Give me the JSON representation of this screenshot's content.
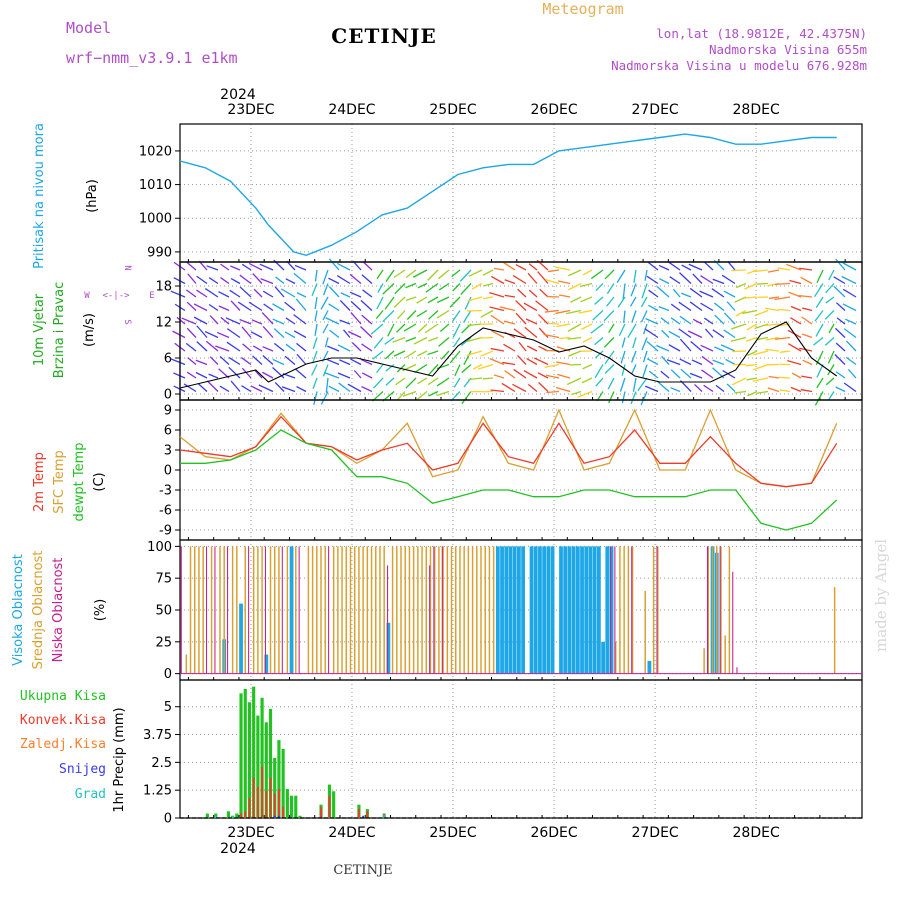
{
  "header": {
    "model_label": "Model",
    "model_name": "wrf−nmm_v3.9.1  e1km",
    "station": "CETINJE",
    "meteogram": "Meteogram",
    "lonlat": "lon,lat (18.9812E, 42.4375N)",
    "altitude": "Nadmorska Visina 655m",
    "model_altitude": "Nadmorska Visina u modelu 676.928m",
    "footer_station": "CETINJE",
    "watermark": "made by Angel"
  },
  "colors": {
    "pressure": "#1ea7e6",
    "temp": "#ee3a2a",
    "sfc": "#d9a030",
    "dewpt": "#22c222",
    "high": "#1ea7e6",
    "mid": "#d9a030",
    "low": "#c2208e",
    "total": "#22c222",
    "conv": "#ee3a2a",
    "frozen": "#ff7f2a",
    "snow": "#3a3aee",
    "grad": "#22c2c2",
    "wind_label": "#22aa22",
    "purple": "#b04ec8"
  },
  "chart_data": [
    {
      "type": "line",
      "panel": "pressure",
      "ylabel_line1": "Pritisak na nivou mora",
      "ylabel_units": "(hPa)",
      "ylim": [
        987,
        1028
      ],
      "yticks": [
        990,
        1000,
        1010,
        1020
      ],
      "x_top_labels": [
        "23DEC",
        "24DEC",
        "25DEC",
        "26DEC",
        "27DEC",
        "28DEC"
      ],
      "x_top_year": "2024",
      "x_hours": [
        0,
        6,
        12,
        18,
        21,
        24,
        27,
        30,
        36,
        42,
        48,
        54,
        60,
        66,
        72,
        78,
        84,
        90,
        96,
        102,
        108,
        114,
        120,
        126,
        132,
        138,
        144,
        150,
        156
      ],
      "series": [
        {
          "values": [
            1017,
            1015,
            1011,
            1003,
            998,
            994,
            990,
            989,
            992,
            996,
            1001,
            1003,
            1008,
            1013,
            1015,
            1016,
            1016,
            1020,
            1021,
            1022,
            1023,
            1024,
            1025,
            1024,
            1022,
            1022,
            1023,
            1024,
            1024
          ]
        }
      ]
    },
    {
      "type": "line",
      "panel": "wind",
      "ylabel_line1": "10m Vjetar",
      "ylabel_line2": "Brzina i Pravac",
      "ylabel_units": "(m/s)",
      "compass": [
        "N",
        "W",
        "E",
        "S"
      ],
      "ylim": [
        -1,
        22
      ],
      "yticks": [
        0,
        6,
        12,
        18
      ],
      "x_hours": [
        0,
        6,
        12,
        18,
        21,
        24,
        30,
        36,
        42,
        48,
        54,
        60,
        66,
        72,
        78,
        84,
        90,
        96,
        102,
        108,
        114,
        120,
        126,
        132,
        138,
        144,
        150,
        156
      ],
      "series": [
        {
          "values": [
            1,
            2,
            3,
            4,
            2,
            3,
            5,
            6,
            6,
            5,
            4,
            3,
            8,
            11,
            10,
            9,
            7,
            8,
            6,
            3,
            2,
            2,
            2,
            4,
            10,
            12,
            6,
            3
          ]
        }
      ]
    },
    {
      "type": "line",
      "panel": "temperature",
      "ylabel_line1": "2m Temp",
      "ylabel_line2": "SFC Temp",
      "ylabel_line3": "dewpt Temp",
      "ylabel_units": "(C)",
      "ylim": [
        -10.5,
        10.5
      ],
      "yticks": [
        -9,
        -6,
        -3,
        0,
        3,
        6,
        9
      ],
      "x_hours": [
        0,
        6,
        12,
        18,
        24,
        30,
        36,
        42,
        48,
        54,
        60,
        66,
        72,
        78,
        84,
        90,
        96,
        102,
        108,
        114,
        120,
        126,
        132,
        138,
        144,
        150,
        156
      ],
      "series": [
        {
          "values": [
            3,
            2.5,
            2,
            3.5,
            8,
            4,
            3.5,
            1.5,
            3,
            4,
            0,
            1,
            7,
            2,
            1,
            7,
            1,
            2,
            6,
            1,
            1,
            5,
            1,
            -2,
            -2.5,
            -2,
            4
          ]
        },
        {
          "values": [
            5,
            2,
            1.5,
            3.5,
            8.5,
            4,
            3.5,
            1,
            3,
            7,
            -1,
            0,
            8,
            1,
            0,
            9,
            0,
            1,
            9,
            0,
            0,
            9,
            0,
            -2,
            -2.5,
            -2,
            7
          ]
        },
        {
          "values": [
            1,
            1,
            1.5,
            3,
            6,
            4,
            3,
            -1,
            -1,
            -2,
            -5,
            -4,
            -3,
            -3,
            -4,
            -4,
            -3,
            -3,
            -4,
            -4,
            -4,
            -3,
            -3,
            -8,
            -9,
            -8,
            -4.5
          ]
        }
      ]
    },
    {
      "type": "bar",
      "panel": "clouds",
      "ylabel_line1": "Visoka Oblacnost",
      "ylabel_line2": "Srednja Oblacnost",
      "ylabel_line3": "Niska Oblacnost",
      "ylabel_units": "(%)",
      "ylim": [
        -5,
        105
      ],
      "yticks": [
        0,
        25,
        50,
        75,
        100
      ],
      "series": [
        {
          "values": [
            [
              10,
              27
            ],
            [
              14,
              55
            ],
            [
              20,
              15
            ],
            [
              26,
              100
            ],
            [
              49,
              40
            ],
            [
              75,
              100
            ],
            [
              76,
              100
            ],
            [
              77,
              100
            ],
            [
              78,
              100
            ],
            [
              79,
              100
            ],
            [
              80,
              100
            ],
            [
              81,
              100
            ],
            [
              83,
              100
            ],
            [
              84,
              100
            ],
            [
              85,
              100
            ],
            [
              86,
              100
            ],
            [
              87,
              100
            ],
            [
              88,
              100
            ],
            [
              90,
              100
            ],
            [
              91,
              100
            ],
            [
              92,
              100
            ],
            [
              93,
              100
            ],
            [
              94,
              100
            ],
            [
              95,
              100
            ],
            [
              96,
              100
            ],
            [
              97,
              100
            ],
            [
              98,
              100
            ],
            [
              99,
              100
            ],
            [
              100,
              25
            ],
            [
              101,
              100
            ],
            [
              102,
              100
            ],
            [
              111,
              10
            ],
            [
              126,
              100
            ],
            [
              127,
              95
            ]
          ]
        },
        {
          "values": [
            [
              1,
              15
            ],
            [
              2,
              100
            ],
            [
              3,
              100
            ],
            [
              4,
              100
            ],
            [
              5,
              100
            ],
            [
              7,
              100
            ],
            [
              9,
              100
            ],
            [
              10,
              100
            ],
            [
              12,
              100
            ],
            [
              13,
              100
            ],
            [
              15,
              100
            ],
            [
              17,
              100
            ],
            [
              18,
              100
            ],
            [
              19,
              100
            ],
            [
              21,
              100
            ],
            [
              22,
              100
            ],
            [
              23,
              100
            ],
            [
              25,
              100
            ],
            [
              27,
              100
            ],
            [
              30,
              100
            ],
            [
              31,
              100
            ],
            [
              32,
              100
            ],
            [
              33,
              100
            ],
            [
              34,
              100
            ],
            [
              36,
              100
            ],
            [
              37,
              100
            ],
            [
              38,
              100
            ],
            [
              39,
              100
            ],
            [
              40,
              100
            ],
            [
              41,
              100
            ],
            [
              42,
              100
            ],
            [
              43,
              100
            ],
            [
              44,
              100
            ],
            [
              45,
              100
            ],
            [
              46,
              100
            ],
            [
              47,
              100
            ],
            [
              48,
              100
            ],
            [
              50,
              100
            ],
            [
              51,
              100
            ],
            [
              52,
              100
            ],
            [
              53,
              100
            ],
            [
              54,
              100
            ],
            [
              55,
              100
            ],
            [
              56,
              100
            ],
            [
              57,
              100
            ],
            [
              58,
              100
            ],
            [
              59,
              100
            ],
            [
              60,
              100
            ],
            [
              61,
              100
            ],
            [
              62,
              100
            ],
            [
              63,
              100
            ],
            [
              64,
              100
            ],
            [
              65,
              100
            ],
            [
              66,
              100
            ],
            [
              67,
              100
            ],
            [
              68,
              100
            ],
            [
              69,
              100
            ],
            [
              70,
              100
            ],
            [
              71,
              100
            ],
            [
              72,
              100
            ],
            [
              73,
              100
            ],
            [
              74,
              100
            ],
            [
              103,
              25
            ],
            [
              104,
              100
            ],
            [
              105,
              100
            ],
            [
              106,
              100
            ],
            [
              107,
              100
            ],
            [
              110,
              65
            ],
            [
              112,
              100
            ],
            [
              113,
              100
            ],
            [
              124,
              20
            ],
            [
              125,
              100
            ],
            [
              126,
              100
            ],
            [
              127,
              100
            ],
            [
              128,
              100
            ],
            [
              129,
              30
            ],
            [
              130,
              100
            ],
            [
              155,
              68
            ]
          ]
        },
        {
          "values": [
            [
              0,
              100
            ],
            [
              6,
              100
            ],
            [
              8,
              100
            ],
            [
              11,
              100
            ],
            [
              16,
              100
            ],
            [
              20,
              100
            ],
            [
              24,
              100
            ],
            [
              28,
              100
            ],
            [
              35,
              100
            ],
            [
              49,
              85
            ],
            [
              59,
              85
            ],
            [
              60,
              100
            ],
            [
              62,
              100
            ],
            [
              102,
              100
            ],
            [
              103,
              100
            ],
            [
              107,
              100
            ],
            [
              113,
              100
            ],
            [
              125,
              100
            ],
            [
              128,
              100
            ],
            [
              131,
              80
            ],
            [
              132,
              5
            ]
          ]
        }
      ]
    },
    {
      "type": "bar",
      "panel": "precipitation",
      "legend": [
        "Ukupna Kisa",
        "Konvek.Kisa",
        "Zaledj.Kisa",
        "Snijeg",
        "Grad"
      ],
      "ylabel": "1hr Precip (mm)",
      "ylim": [
        0,
        6.2
      ],
      "yticks": [
        0,
        1.25,
        2.5,
        3.75,
        5
      ],
      "x_bottom_labels": [
        "23DEC",
        "24DEC",
        "25DEC",
        "26DEC",
        "27DEC",
        "28DEC"
      ],
      "x_bottom_year": "2024",
      "series": [
        {
          "values": [
            [
              6,
              0.2
            ],
            [
              8,
              0.2
            ],
            [
              11,
              0.3
            ],
            [
              12,
              0.1
            ],
            [
              13,
              0.2
            ],
            [
              14,
              5.6
            ],
            [
              15,
              5.8
            ],
            [
              16,
              5.2
            ],
            [
              17,
              5.9
            ],
            [
              18,
              4.6
            ],
            [
              19,
              5.4
            ],
            [
              20,
              4.3
            ],
            [
              21,
              4.9
            ],
            [
              22,
              2.7
            ],
            [
              23,
              3.5
            ],
            [
              24,
              3.1
            ],
            [
              25,
              1.3
            ],
            [
              26,
              1.0
            ],
            [
              27,
              1.0
            ],
            [
              28,
              0.1
            ],
            [
              33,
              0.6
            ],
            [
              35,
              1.5
            ],
            [
              36,
              1.2
            ],
            [
              42,
              0.6
            ],
            [
              44,
              0.4
            ],
            [
              48,
              0.2
            ]
          ]
        },
        {
          "values": [
            [
              14,
              0.2
            ],
            [
              15,
              0.3
            ],
            [
              16,
              0.9
            ],
            [
              17,
              1.8
            ],
            [
              18,
              1.4
            ],
            [
              19,
              2.3
            ],
            [
              20,
              1.2
            ],
            [
              21,
              1.8
            ],
            [
              22,
              1.1
            ],
            [
              23,
              1.3
            ],
            [
              24,
              0.5
            ],
            [
              33,
              0.5
            ],
            [
              35,
              1.0
            ],
            [
              42,
              0.4
            ],
            [
              44,
              0.3
            ],
            [
              48,
              0.2
            ]
          ]
        },
        {
          "values": []
        },
        {
          "values": [
            [
              22,
              0.1
            ],
            [
              23,
              0.1
            ],
            [
              43,
              0.1
            ]
          ]
        },
        {
          "values": [
            [
              8,
              0.1
            ],
            [
              12,
              0.1
            ],
            [
              48,
              0.15
            ]
          ]
        }
      ]
    }
  ]
}
